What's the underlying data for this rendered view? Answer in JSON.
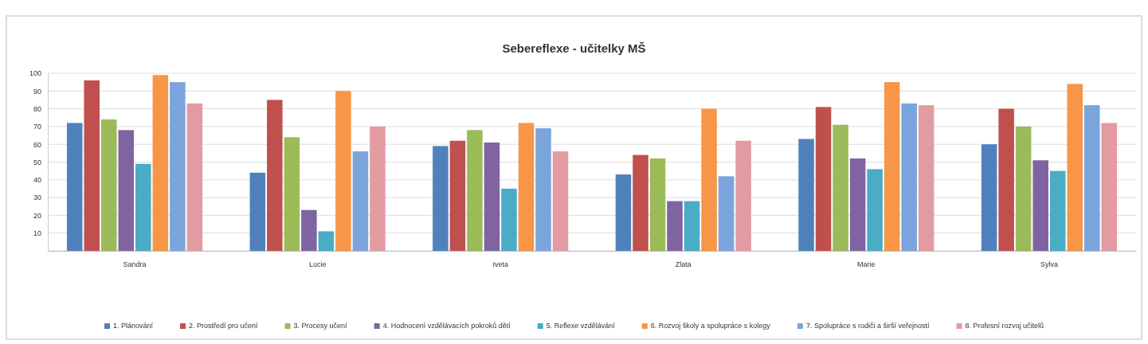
{
  "chart_data": {
    "type": "bar",
    "title": "Sebereflexe - učitelky MŠ",
    "categories": [
      "Sandra",
      "Lucie",
      "Iveta",
      "Zlata",
      "Marie",
      "Sylva"
    ],
    "series": [
      {
        "name": "1. Plánování",
        "color": "#4f81bd",
        "values": [
          72,
          44,
          59,
          43,
          63,
          60
        ]
      },
      {
        "name": "2. Prostředí pro učení",
        "color": "#c0504d",
        "values": [
          96,
          85,
          62,
          54,
          81,
          80
        ]
      },
      {
        "name": "3. Procesy učení",
        "color": "#9bbb59",
        "values": [
          74,
          64,
          68,
          52,
          71,
          70
        ]
      },
      {
        "name": "4. Hodnocení vzdělávacích pokroků dětí",
        "color": "#8064a2",
        "values": [
          68,
          23,
          61,
          28,
          52,
          51
        ]
      },
      {
        "name": "5. Reflexe vzdělávání",
        "color": "#4bacc6",
        "values": [
          49,
          11,
          35,
          28,
          46,
          45
        ]
      },
      {
        "name": "6. Rozvoj školy a spolupráce s kolegy",
        "color": "#f79646",
        "values": [
          99,
          90,
          72,
          80,
          95,
          94
        ]
      },
      {
        "name": "7. Spolupráce s rodiči a širší veřejností",
        "color": "#7ba4dc",
        "values": [
          95,
          56,
          69,
          42,
          83,
          82
        ]
      },
      {
        "name": "8. Profesní rozvoj učitelů",
        "color": "#e39ba2",
        "values": [
          83,
          70,
          56,
          62,
          82,
          72
        ]
      }
    ],
    "ylim": [
      0,
      100
    ],
    "yticks": [
      {
        "value": 0,
        "label": null
      },
      10,
      20,
      30,
      40,
      50,
      60,
      70,
      80,
      90,
      100
    ],
    "grid": "y",
    "legend": "bottom"
  }
}
